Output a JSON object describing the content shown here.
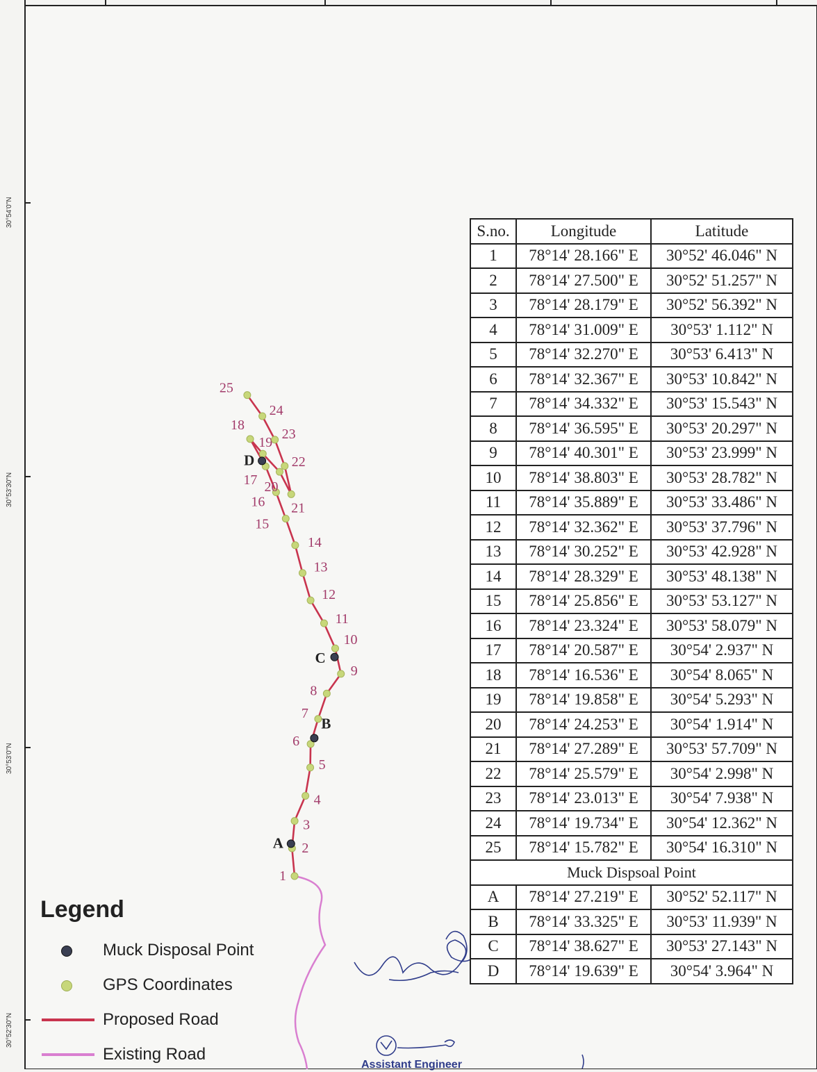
{
  "lat_ticks": [
    "30°54'0\"N",
    "30°53'30\"N",
    "30°53'0\"N",
    "30°52'30\"N"
  ],
  "gps_points": [
    {
      "id": "1",
      "lon": "78°14' 28.166\" E",
      "lat": "30°52' 46.046\" N"
    },
    {
      "id": "2",
      "lon": "78°14' 27.500\" E",
      "lat": "30°52' 51.257\" N"
    },
    {
      "id": "3",
      "lon": "78°14' 28.179\" E",
      "lat": "30°52' 56.392\" N"
    },
    {
      "id": "4",
      "lon": "78°14' 31.009\" E",
      "lat": "30°53' 1.112\" N"
    },
    {
      "id": "5",
      "lon": "78°14' 32.270\" E",
      "lat": "30°53' 6.413\" N"
    },
    {
      "id": "6",
      "lon": "78°14' 32.367\" E",
      "lat": "30°53' 10.842\" N"
    },
    {
      "id": "7",
      "lon": "78°14' 34.332\" E",
      "lat": "30°53' 15.543\" N"
    },
    {
      "id": "8",
      "lon": "78°14' 36.595\" E",
      "lat": "30°53' 20.297\" N"
    },
    {
      "id": "9",
      "lon": "78°14' 40.301\" E",
      "lat": "30°53' 23.999\" N"
    },
    {
      "id": "10",
      "lon": "78°14' 38.803\" E",
      "lat": "30°53' 28.782\" N"
    },
    {
      "id": "11",
      "lon": "78°14' 35.889\" E",
      "lat": "30°53' 33.486\" N"
    },
    {
      "id": "12",
      "lon": "78°14' 32.362\" E",
      "lat": "30°53' 37.796\" N"
    },
    {
      "id": "13",
      "lon": "78°14' 30.252\" E",
      "lat": "30°53' 42.928\" N"
    },
    {
      "id": "14",
      "lon": "78°14' 28.329\" E",
      "lat": "30°53' 48.138\" N"
    },
    {
      "id": "15",
      "lon": "78°14' 25.856\" E",
      "lat": "30°53' 53.127\" N"
    },
    {
      "id": "16",
      "lon": "78°14' 23.324\" E",
      "lat": "30°53' 58.079\" N"
    },
    {
      "id": "17",
      "lon": "78°14' 20.587\" E",
      "lat": "30°54' 2.937\" N"
    },
    {
      "id": "18",
      "lon": "78°14' 16.536\" E",
      "lat": "30°54' 8.065\" N"
    },
    {
      "id": "19",
      "lon": "78°14' 19.858\" E",
      "lat": "30°54' 5.293\" N"
    },
    {
      "id": "20",
      "lon": "78°14' 24.253\" E",
      "lat": "30°54' 1.914\" N"
    },
    {
      "id": "21",
      "lon": "78°14' 27.289\" E",
      "lat": "30°53' 57.709\" N"
    },
    {
      "id": "22",
      "lon": "78°14' 25.579\" E",
      "lat": "30°54' 2.998\" N"
    },
    {
      "id": "23",
      "lon": "78°14' 23.013\" E",
      "lat": "30°54' 7.938\" N"
    },
    {
      "id": "24",
      "lon": "78°14' 19.734\" E",
      "lat": "30°54' 12.362\" N"
    },
    {
      "id": "25",
      "lon": "78°14' 15.782\" E",
      "lat": "30°54' 16.310\" N"
    }
  ],
  "muck_points": [
    {
      "id": "A",
      "lon": "78°14' 27.219\" E",
      "lat": "30°52' 52.117\" N"
    },
    {
      "id": "B",
      "lon": "78°14' 33.325\" E",
      "lat": "30°53' 11.939\" N"
    },
    {
      "id": "C",
      "lon": "78°14' 38.627\" E",
      "lat": "30°53' 27.143\" N"
    },
    {
      "id": "D",
      "lon": "78°14' 19.639\" E",
      "lat": "30°54' 3.964\" N"
    }
  ],
  "table": {
    "col_sno": "S.no.",
    "col_lon": "Longitude",
    "col_lat": "Latitude",
    "muck_header": "Muck Dispsoal Point"
  },
  "legend": {
    "title": "Legend",
    "muck": "Muck Disposal Point",
    "gps": "GPS Coordinates",
    "proposed": "Proposed Road",
    "existing": "Existing Road"
  },
  "footer_text": "Assistant Engineer",
  "colors": {
    "proposed_road": "#c8344e",
    "existing_road": "#d97fd0",
    "gps_point": "#c7d77a",
    "muck_point": "#3a3f52",
    "label": "#a23b6a"
  }
}
